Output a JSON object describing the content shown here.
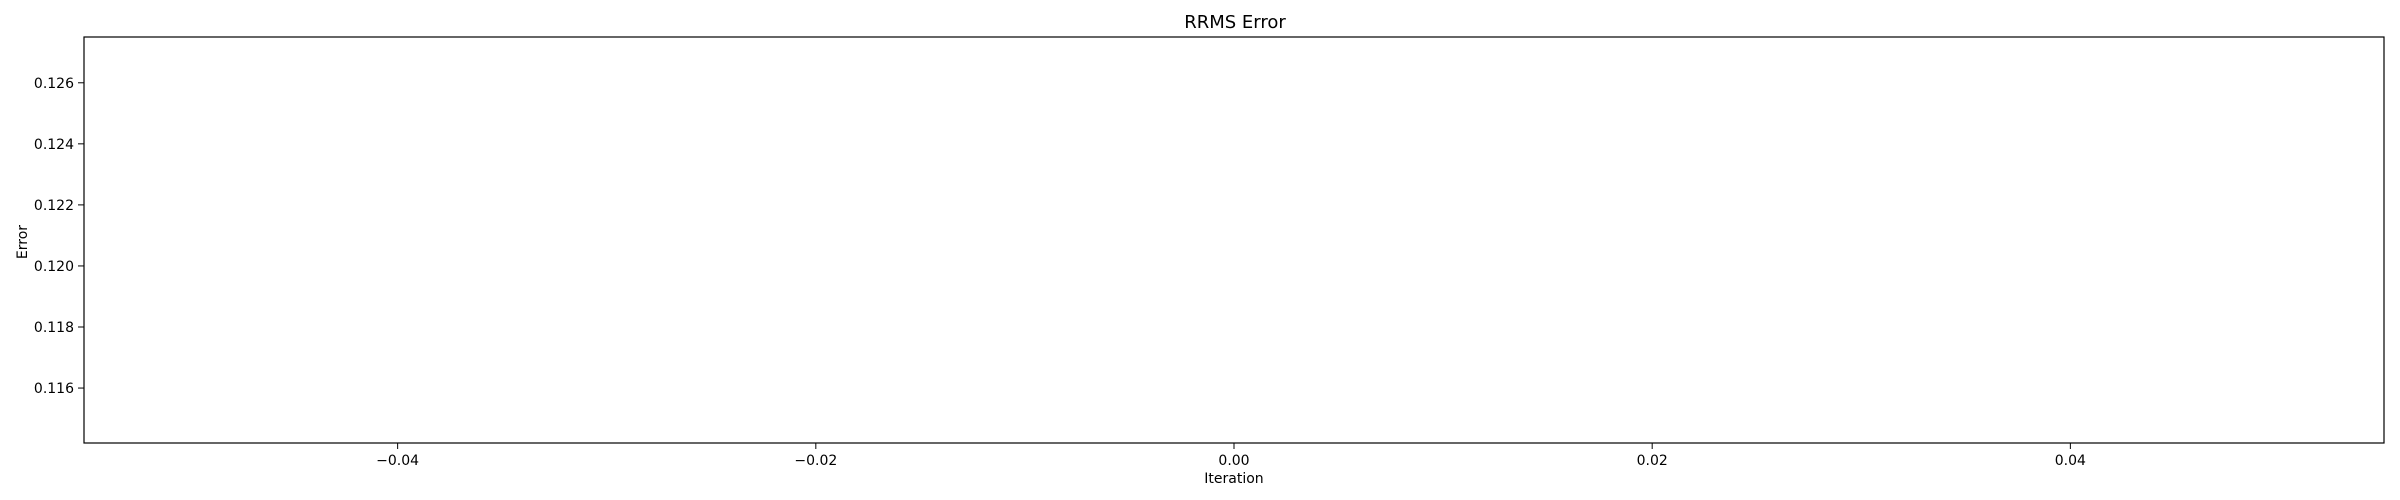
{
  "chart_data": {
    "type": "line",
    "title": "RRMS Error",
    "xlabel": "Iteration",
    "ylabel": "Error",
    "xlim": [
      -0.055,
      0.055
    ],
    "ylim": [
      0.1142,
      0.1275
    ],
    "xticks": [
      -0.04,
      -0.02,
      0.0,
      0.02,
      0.04
    ],
    "xtick_labels": [
      "−0.04",
      "−0.02",
      "0.00",
      "0.02",
      "0.04"
    ],
    "yticks": [
      0.116,
      0.118,
      0.12,
      0.122,
      0.124,
      0.126
    ],
    "ytick_labels": [
      "0.116",
      "0.118",
      "0.120",
      "0.122",
      "0.124",
      "0.126"
    ],
    "grid": false,
    "series": []
  }
}
